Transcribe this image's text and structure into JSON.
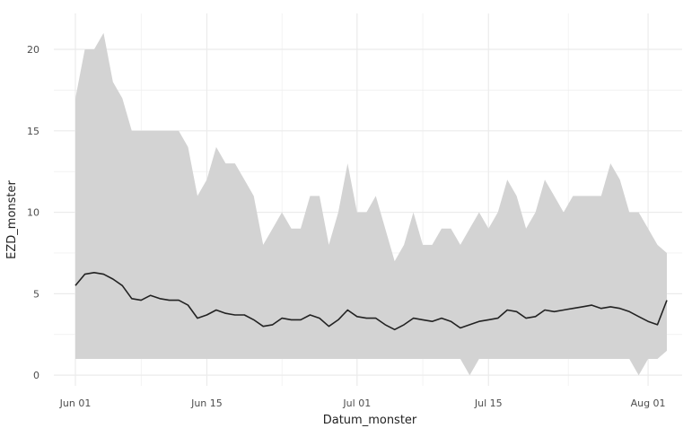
{
  "chart_data": {
    "type": "area",
    "title": "",
    "xlabel": "Datum_monster",
    "ylabel": "EZD_monster",
    "x_domain": [
      "2021-06-01",
      "2021-08-03"
    ],
    "ylim": [
      -0.5,
      21.5
    ],
    "x_ticks": [
      {
        "date": "2021-06-01",
        "label": "Jun 01"
      },
      {
        "date": "2021-06-15",
        "label": "Jun 15"
      },
      {
        "date": "2021-07-01",
        "label": "Jul 01"
      },
      {
        "date": "2021-07-15",
        "label": "Jul 15"
      },
      {
        "date": "2021-08-01",
        "label": "Aug 01"
      }
    ],
    "y_ticks": [
      0,
      5,
      10,
      15,
      20
    ],
    "grid": true,
    "colors": {
      "ribbon": "#d3d3d3",
      "line": "#222222",
      "grid": "#ebebeb"
    },
    "x": [
      "2021-06-01",
      "2021-06-02",
      "2021-06-03",
      "2021-06-04",
      "2021-06-05",
      "2021-06-06",
      "2021-06-07",
      "2021-06-08",
      "2021-06-09",
      "2021-06-10",
      "2021-06-11",
      "2021-06-12",
      "2021-06-13",
      "2021-06-14",
      "2021-06-15",
      "2021-06-16",
      "2021-06-17",
      "2021-06-18",
      "2021-06-19",
      "2021-06-20",
      "2021-06-21",
      "2021-06-22",
      "2021-06-23",
      "2021-06-24",
      "2021-06-25",
      "2021-06-26",
      "2021-06-27",
      "2021-06-28",
      "2021-06-29",
      "2021-06-30",
      "2021-07-01",
      "2021-07-02",
      "2021-07-03",
      "2021-07-04",
      "2021-07-05",
      "2021-07-06",
      "2021-07-07",
      "2021-07-08",
      "2021-07-09",
      "2021-07-10",
      "2021-07-11",
      "2021-07-12",
      "2021-07-13",
      "2021-07-14",
      "2021-07-15",
      "2021-07-16",
      "2021-07-17",
      "2021-07-18",
      "2021-07-19",
      "2021-07-20",
      "2021-07-21",
      "2021-07-22",
      "2021-07-23",
      "2021-07-24",
      "2021-07-25",
      "2021-07-26",
      "2021-07-27",
      "2021-07-28",
      "2021-07-29",
      "2021-07-30",
      "2021-07-31",
      "2021-08-01",
      "2021-08-02",
      "2021-08-03"
    ],
    "series": [
      {
        "values": [
          5.5,
          6.2,
          6.3,
          6.2,
          5.9,
          5.5,
          4.7,
          4.6,
          4.9,
          4.7,
          4.6,
          4.6,
          4.3,
          3.5,
          3.7,
          4.0,
          3.8,
          3.7,
          3.7,
          3.4,
          3.0,
          3.1,
          3.5,
          3.4,
          3.4,
          3.7,
          3.5,
          3.0,
          3.4,
          4.0,
          3.6,
          3.5,
          3.5,
          3.1,
          2.8,
          3.1,
          3.5,
          3.4,
          3.3,
          3.5,
          3.3,
          2.9,
          3.1,
          3.3,
          3.4,
          3.5,
          4.0,
          3.9,
          3.5,
          3.6,
          4.0,
          3.9,
          4.0,
          4.1,
          4.2,
          4.3,
          4.1,
          4.2,
          4.1,
          3.9,
          3.6,
          3.3,
          3.1,
          4.6
        ]
      },
      {
        "values": [
          17,
          20,
          20,
          21,
          18,
          17,
          15,
          15,
          15,
          15,
          15,
          15,
          14,
          11,
          12,
          14,
          13,
          13,
          12,
          11,
          8,
          9,
          10,
          9,
          9,
          11,
          11,
          8,
          10,
          13,
          10,
          10,
          11,
          9,
          7,
          8,
          10,
          8,
          8,
          9,
          9,
          8,
          9,
          10,
          9,
          10,
          12,
          11,
          9,
          10,
          12,
          11,
          10,
          11,
          11,
          11,
          11,
          13,
          12,
          10,
          10,
          9,
          8,
          7.5
        ]
      },
      {
        "values": [
          1,
          1,
          1,
          1,
          1,
          1,
          1,
          1,
          1,
          1,
          1,
          1,
          1,
          1,
          1,
          1,
          1,
          1,
          1,
          1,
          1,
          1,
          1,
          1,
          1,
          1,
          1,
          1,
          1,
          1,
          1,
          1,
          1,
          1,
          1,
          1,
          1,
          1,
          1,
          1,
          1,
          1,
          0,
          1,
          1,
          1,
          1,
          1,
          1,
          1,
          1,
          1,
          1,
          1,
          1,
          1,
          1,
          1,
          1,
          1,
          0,
          1,
          1,
          1.5
        ]
      }
    ]
  }
}
